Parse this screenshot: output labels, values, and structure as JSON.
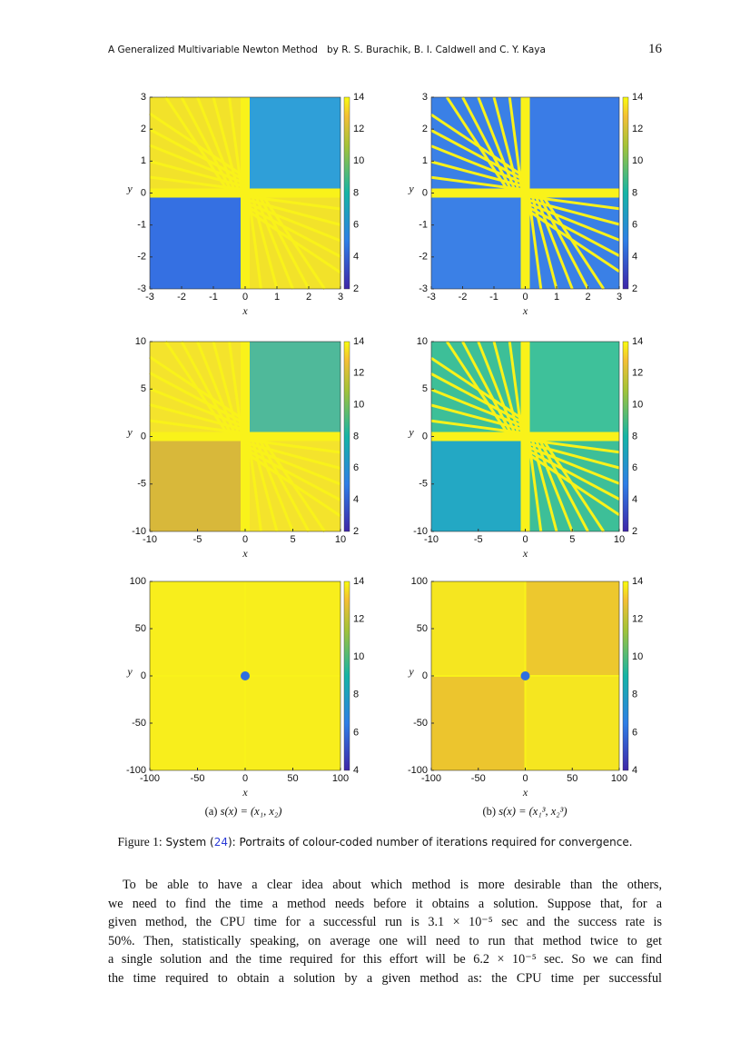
{
  "header": {
    "title": "A Generalized Multivariable Newton Method",
    "authors": "by R. S. Burachik, B. I. Caldwell and C. Y. Kaya",
    "page": "16"
  },
  "figure": {
    "panels": [
      {
        "xticks": [
          "-3",
          "-2",
          "-1",
          "0",
          "1",
          "2",
          "3"
        ],
        "yticks": [
          "-3",
          "-2",
          "-1",
          "0",
          "1",
          "2",
          "3"
        ],
        "colorbar_ticks": [
          "2",
          "4",
          "6",
          "8",
          "10",
          "12",
          "14"
        ],
        "xlabel": "x",
        "ylabel": "y"
      },
      {
        "xticks": [
          "-3",
          "-2",
          "-1",
          "0",
          "1",
          "2",
          "3"
        ],
        "yticks": [
          "-3",
          "-2",
          "-1",
          "0",
          "1",
          "2",
          "3"
        ],
        "colorbar_ticks": [
          "2",
          "4",
          "6",
          "8",
          "10",
          "12",
          "14"
        ],
        "xlabel": "x",
        "ylabel": "y"
      },
      {
        "xticks": [
          "-10",
          "-5",
          "0",
          "5",
          "10"
        ],
        "yticks": [
          "-10",
          "-5",
          "0",
          "5",
          "10"
        ],
        "colorbar_ticks": [
          "2",
          "4",
          "6",
          "8",
          "10",
          "12",
          "14"
        ],
        "xlabel": "x",
        "ylabel": "y"
      },
      {
        "xticks": [
          "-10",
          "-5",
          "0",
          "5",
          "10"
        ],
        "yticks": [
          "-10",
          "-5",
          "0",
          "5",
          "10"
        ],
        "colorbar_ticks": [
          "2",
          "4",
          "6",
          "8",
          "10",
          "12",
          "14"
        ],
        "xlabel": "x",
        "ylabel": "y"
      },
      {
        "xticks": [
          "-100",
          "-50",
          "0",
          "50",
          "100"
        ],
        "yticks": [
          "-100",
          "-50",
          "0",
          "50",
          "100"
        ],
        "colorbar_ticks": [
          "4",
          "6",
          "8",
          "10",
          "12",
          "14"
        ],
        "xlabel": "x",
        "ylabel": "y"
      },
      {
        "xticks": [
          "-100",
          "-50",
          "0",
          "50",
          "100"
        ],
        "yticks": [
          "-100",
          "-50",
          "0",
          "50",
          "100"
        ],
        "colorbar_ticks": [
          "4",
          "6",
          "8",
          "10",
          "12",
          "14"
        ],
        "xlabel": "x",
        "ylabel": "y"
      }
    ],
    "subcaptions": [
      {
        "label": "(a)",
        "formula": "s(x) = (x₁, x₂)"
      },
      {
        "label": "(b)",
        "formula": "s(x) = (x₁³, x₂³)"
      }
    ],
    "caption": {
      "label": "Figure 1:",
      "before": "System (",
      "ref": "24",
      "after": "): Portraits of colour-coded number of iterations required for convergence."
    }
  },
  "paragraph": [
    "To be able to have a clear idea about which method is more desirable than the others,",
    "we need to find the time a method needs before it obtains a solution. Suppose that, for a",
    "given method, the CPU time for a successful run is 3.1 × 10⁻⁵ sec and the success rate is",
    "50%. Then, statistically speaking, on average one will need to run that method twice to get",
    "a single solution and the time required for this effort will be 6.2 × 10⁻⁵ sec. So we can find",
    "the time required to obtain a solution by a given method as: the CPU time per successful"
  ]
}
